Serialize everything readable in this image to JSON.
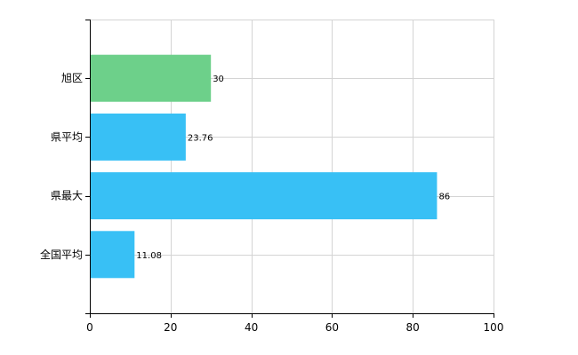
{
  "chart_data": {
    "type": "bar",
    "orientation": "horizontal",
    "categories": [
      "旭区",
      "県平均",
      "県最大",
      "全国平均"
    ],
    "values": [
      30,
      23.76,
      86,
      11.08
    ],
    "data_labels": [
      "30",
      "23.76",
      "86",
      "11.08"
    ],
    "bar_colors": [
      "#6dd08a",
      "#38c0f5",
      "#38c0f5",
      "#38c0f5"
    ],
    "title": "",
    "xlabel": "",
    "ylabel": "",
    "xlim": [
      0,
      100
    ],
    "x_ticks": [
      0,
      20,
      40,
      60,
      80,
      100
    ],
    "grid": true,
    "legend": "none"
  }
}
